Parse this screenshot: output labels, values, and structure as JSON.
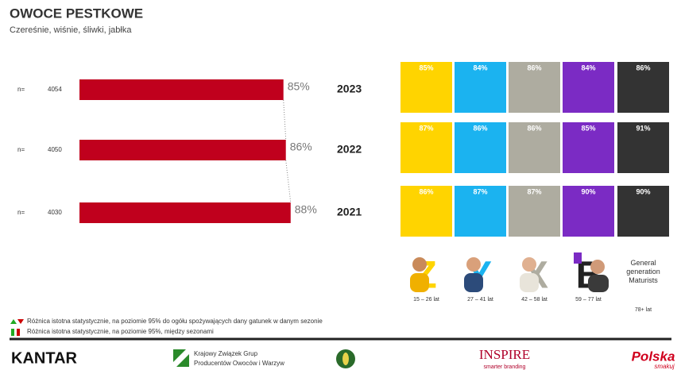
{
  "header": {
    "title": "OWOCE PESTKOWE",
    "subtitle": "Czereśnie, wiśnie, śliwki, jabłka"
  },
  "chart_data": [
    {
      "type": "bar",
      "categories": [
        "2023",
        "2022",
        "2021"
      ],
      "values": [
        85,
        86,
        88
      ],
      "value_labels": [
        "85%",
        "86%",
        "88%"
      ],
      "color": "#c0001d",
      "xlim": [
        0,
        100
      ],
      "n_label": "n=",
      "n_values": [
        4054,
        4050,
        4030
      ]
    },
    {
      "type": "heatmap",
      "categories": [
        "15 – 26 lat",
        "27 – 41 lat",
        "42 – 58 lat",
        "59 – 77 lat",
        "78+ lat"
      ],
      "colors": [
        "#ffd400",
        "#1bb3f0",
        "#aeaca0",
        "#7b2bc4",
        "#333333"
      ],
      "extra_label": "General generation Maturists",
      "series": [
        {
          "values": [
            85,
            84,
            86,
            84,
            86
          ],
          "value_labels": [
            "85%",
            "84%",
            "86%",
            "84%",
            "86%"
          ]
        },
        {
          "values": [
            87,
            86,
            86,
            85,
            91
          ],
          "value_labels": [
            "87%",
            "86%",
            "86%",
            "85%",
            "91%"
          ]
        },
        {
          "values": [
            86,
            87,
            87,
            90,
            90
          ],
          "value_labels": [
            "86%",
            "87%",
            "87%",
            "90%",
            "90%"
          ]
        }
      ]
    }
  ],
  "footer": {
    "note1": "Różnica istotna statystycznie, na poziomie 95%  do ogółu spożywających dany gatunek w danym sezonie",
    "note2": "Różnica istotna statystycznie, na poziomie 95%,  między sezonami",
    "logo1": "KANTAR",
    "logo2a": "Krajowy Związek Grup",
    "logo2b": "Producentów Owoców i Warzyw",
    "logo3a": "INSPIRE",
    "logo3b": "smarter branding",
    "logo4a": "Polska",
    "logo4b": "smakuj"
  }
}
